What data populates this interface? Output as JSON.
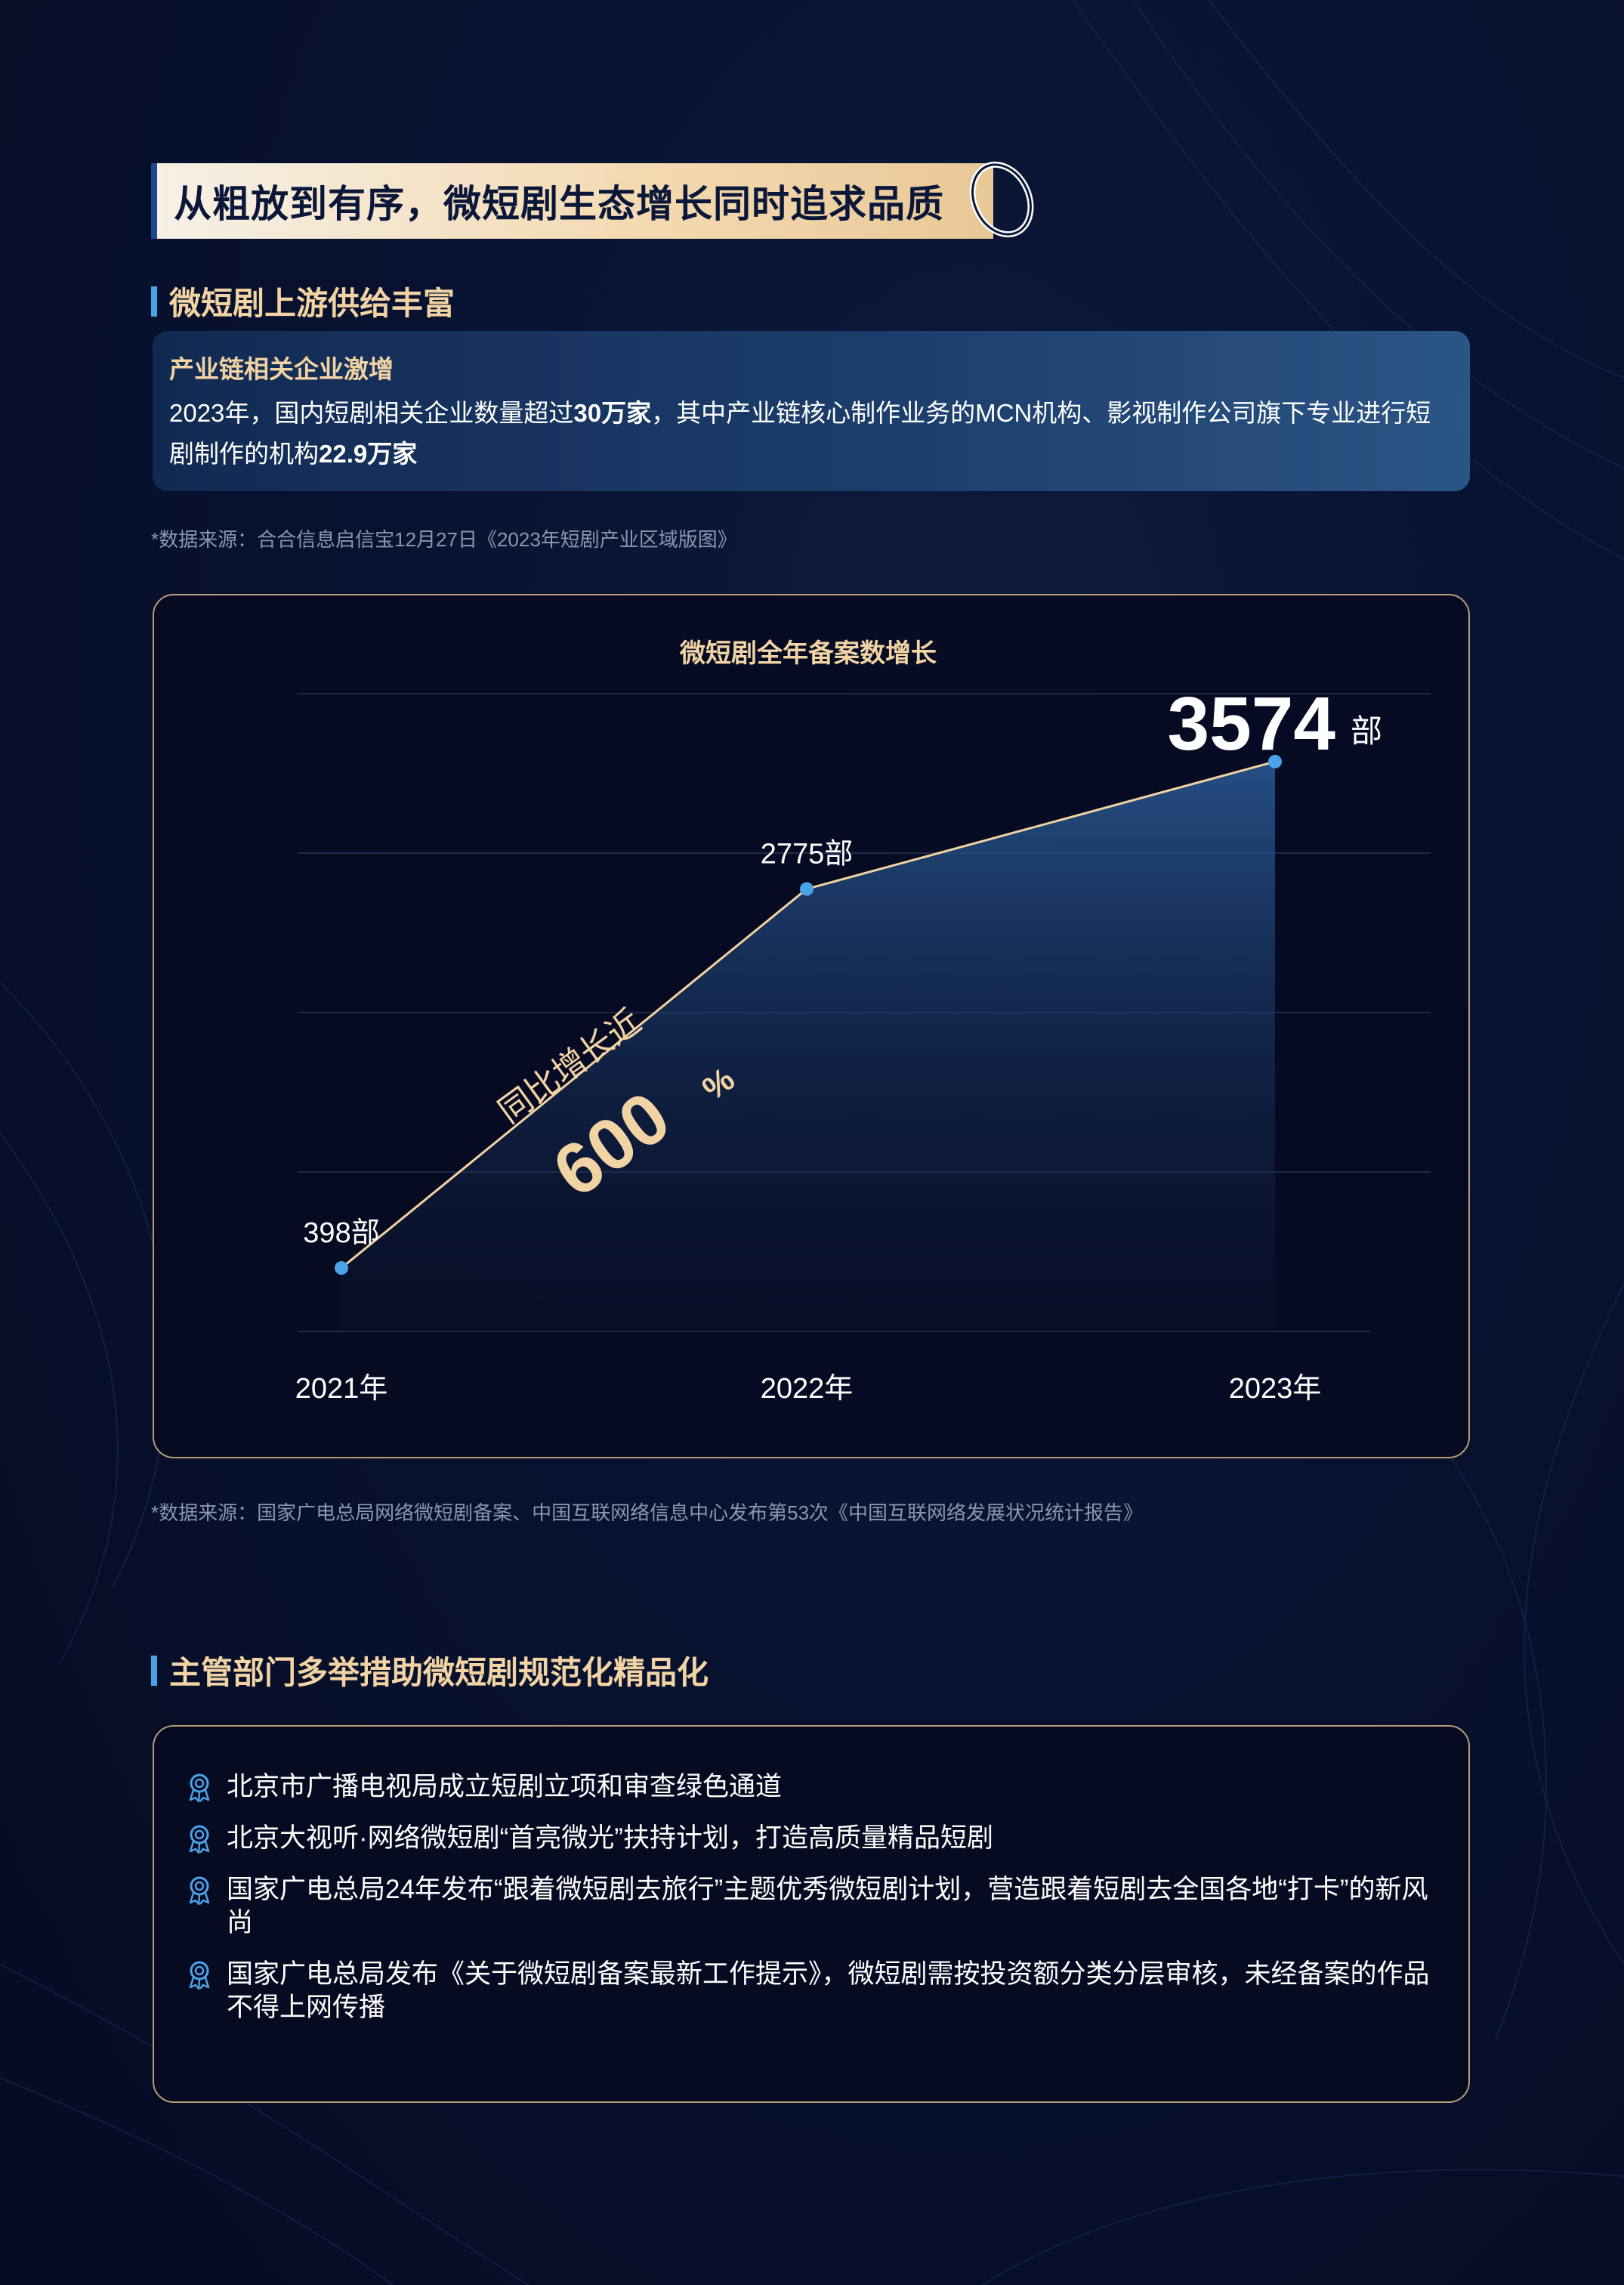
{
  "banner": {
    "title": "从粗放到有序，微短剧生态增长同时追求品质"
  },
  "section1": {
    "heading": "微短剧上游供给丰富"
  },
  "info": {
    "title": "产业链相关企业激增",
    "body_part1": "2023年，国内短剧相关企业数量超过",
    "body_bold1": "30万家",
    "body_part2": "，其中产业链核心制作业务的MCN机构、影视制作公司旗下专业进行短剧制作的机构",
    "body_bold2": "22.9万家"
  },
  "source1": "*数据来源：合合信息启信宝12月27日《2023年短剧产业区域版图》",
  "chart_data": {
    "type": "area",
    "title": "微短剧全年备案数增长",
    "categories": [
      "2021年",
      "2022年",
      "2023年"
    ],
    "values": [
      398,
      2775,
      3574
    ],
    "value_labels": [
      "398部",
      "2775部",
      "3574"
    ],
    "last_unit": "部",
    "annotation_line1": "同比增长近",
    "annotation_value": "600",
    "annotation_unit": "%",
    "ylim": [
      0,
      4000
    ],
    "grid": true,
    "colors": {
      "line": "#f2d3a4",
      "point": "#4aa3e8",
      "fill": "#2a5a94"
    }
  },
  "source2": "*数据来源：国家广电总局网络微短剧备案、中国互联网络信息中心发布第53次《中国互联网络发展状况统计报告》",
  "section2": {
    "heading": "主管部门多举措助微短剧规范化精品化"
  },
  "measures": [
    "北京市广播电视局成立短剧立项和审查绿色通道",
    "北京大视听·网络微短剧“首亮微光”扶持计划，打造高质量精品短剧",
    "国家广电总局24年发布“跟着微短剧去旅行”主题优秀微短剧计划，营造跟着短剧去全国各地“打卡”的新风尚",
    "国家广电总局发布《关于微短剧备案最新工作提示》，微短剧需按投资额分类分层审核，未经备案的作品不得上网传播"
  ]
}
